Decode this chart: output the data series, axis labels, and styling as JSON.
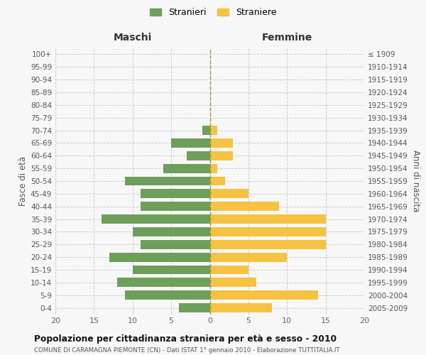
{
  "age_groups_bottom_to_top": [
    "0-4",
    "5-9",
    "10-14",
    "15-19",
    "20-24",
    "25-29",
    "30-34",
    "35-39",
    "40-44",
    "45-49",
    "50-54",
    "55-59",
    "60-64",
    "65-69",
    "70-74",
    "75-79",
    "80-84",
    "85-89",
    "90-94",
    "95-99",
    "100+"
  ],
  "birth_years_bottom_to_top": [
    "2005-2009",
    "2000-2004",
    "1995-1999",
    "1990-1994",
    "1985-1989",
    "1980-1984",
    "1975-1979",
    "1970-1974",
    "1965-1969",
    "1960-1964",
    "1955-1959",
    "1950-1954",
    "1945-1949",
    "1940-1944",
    "1935-1939",
    "1930-1934",
    "1925-1929",
    "1920-1924",
    "1915-1919",
    "1910-1914",
    "≤ 1909"
  ],
  "males_bottom_to_top": [
    4,
    11,
    12,
    10,
    13,
    9,
    10,
    14,
    9,
    9,
    11,
    6,
    3,
    5,
    1,
    0,
    0,
    0,
    0,
    0,
    0
  ],
  "females_bottom_to_top": [
    8,
    14,
    6,
    5,
    10,
    15,
    15,
    15,
    9,
    5,
    2,
    1,
    3,
    3,
    1,
    0,
    0,
    0,
    0,
    0,
    0
  ],
  "male_color": "#6d9f5b",
  "female_color": "#f5c242",
  "xlim": 20,
  "title": "Popolazione per cittadinanza straniera per età e sesso - 2010",
  "subtitle": "COMUNE DI CARAMAGNA PIEMONTE (CN) - Dati ISTAT 1° gennaio 2010 - Elaborazione TUTTITALIA.IT",
  "ylabel_left": "Fasce di età",
  "ylabel_right": "Anni di nascita",
  "xlabel_left": "Maschi",
  "xlabel_right": "Femmine",
  "legend_stranieri": "Stranieri",
  "legend_straniere": "Straniere",
  "bg_color": "#f7f7f7",
  "grid_color": "#cccccc"
}
